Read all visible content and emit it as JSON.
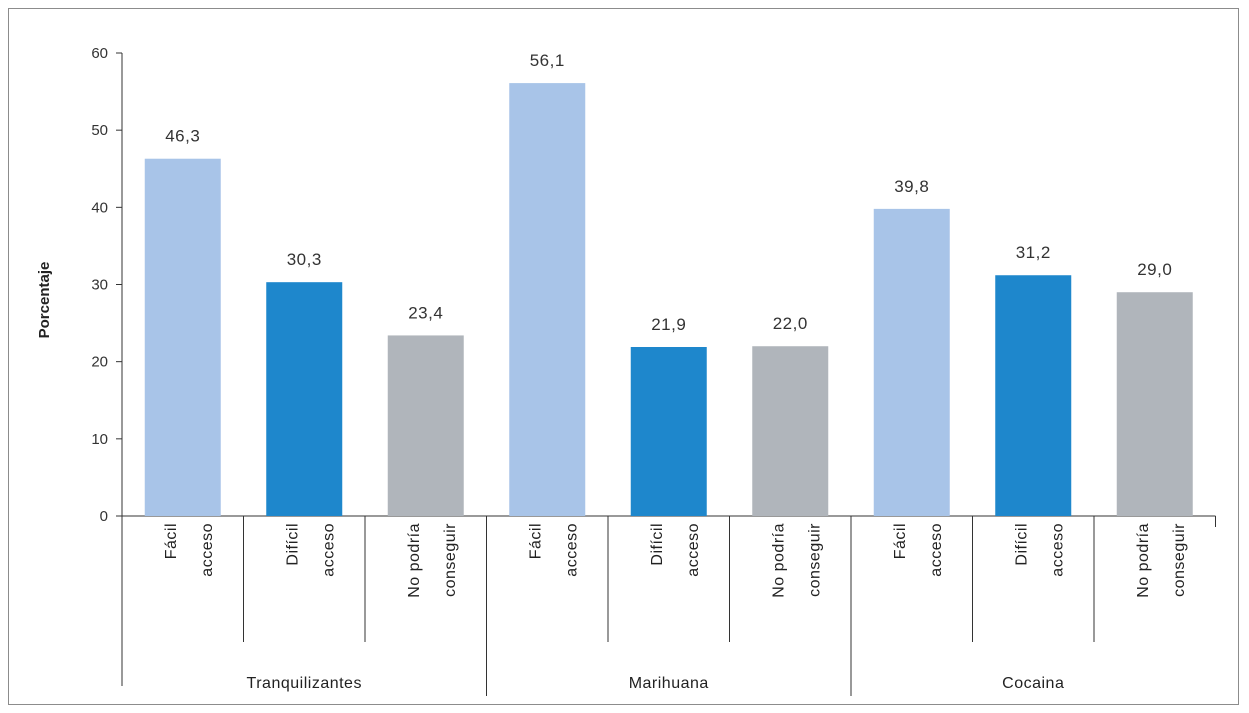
{
  "chart_data": {
    "type": "bar",
    "title": "",
    "ylabel": "Porcentaje",
    "ylim": [
      0,
      60
    ],
    "yticks": [
      0,
      10,
      20,
      30,
      40,
      50,
      60
    ],
    "grid": false,
    "groups": [
      {
        "name": "Tranquilizantes",
        "bars": [
          {
            "label": [
              "Fácil",
              "acceso"
            ],
            "value": 46.3,
            "display": "46,3",
            "color": "#a8c4e8"
          },
          {
            "label": [
              "Difícil",
              "acceso"
            ],
            "value": 30.3,
            "display": "30,3",
            "color": "#1e87cc"
          },
          {
            "label": [
              "No podría",
              "conseguir"
            ],
            "value": 23.4,
            "display": "23,4",
            "color": "#b0b5bb"
          }
        ]
      },
      {
        "name": "Marihuana",
        "bars": [
          {
            "label": [
              "Fácil",
              "acceso"
            ],
            "value": 56.1,
            "display": "56,1",
            "color": "#a8c4e8"
          },
          {
            "label": [
              "Difícil",
              "acceso"
            ],
            "value": 21.9,
            "display": "21,9",
            "color": "#1e87cc"
          },
          {
            "label": [
              "No podría",
              "conseguir"
            ],
            "value": 22.0,
            "display": "22,0",
            "color": "#b0b5bb"
          }
        ]
      },
      {
        "name": "Cocaina",
        "bars": [
          {
            "label": [
              "Fácil",
              "acceso"
            ],
            "value": 39.8,
            "display": "39,8",
            "color": "#a8c4e8"
          },
          {
            "label": [
              "Difícil",
              "acceso"
            ],
            "value": 31.2,
            "display": "31,2",
            "color": "#1e87cc"
          },
          {
            "label": [
              "No podría",
              "conseguir"
            ],
            "value": 29.0,
            "display": "29,0",
            "color": "#b0b5bb"
          }
        ]
      }
    ]
  }
}
